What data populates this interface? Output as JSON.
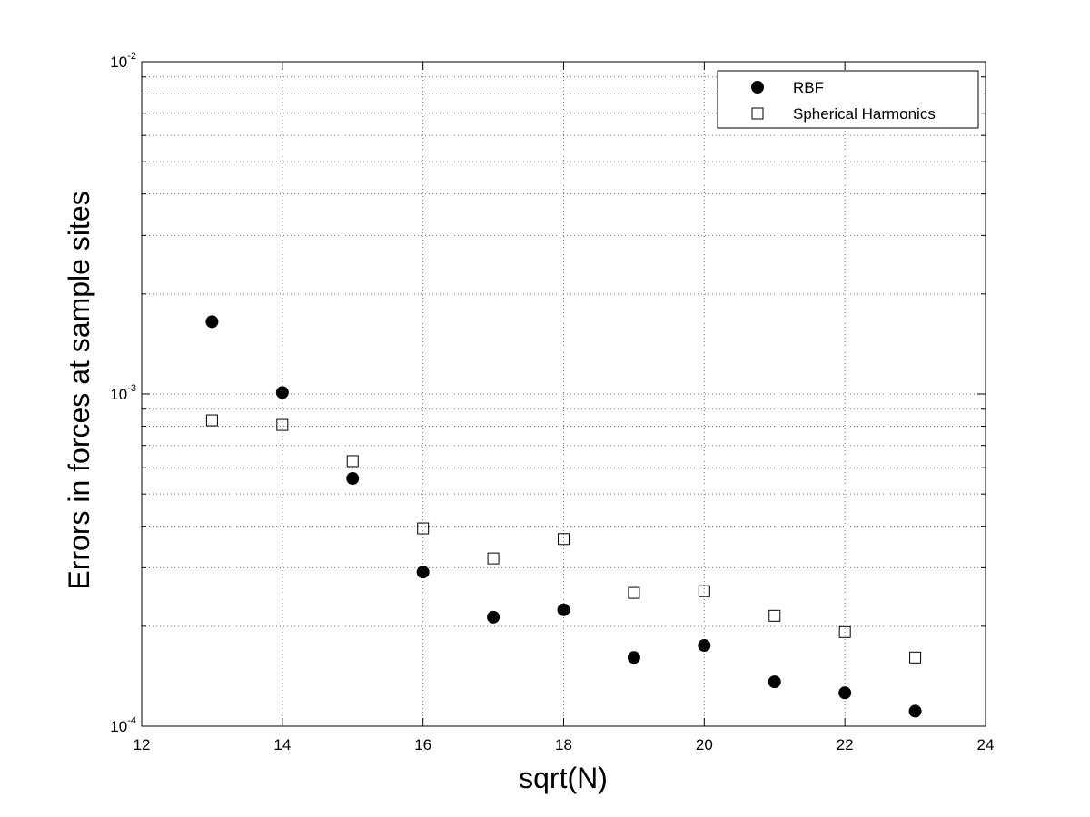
{
  "chart_data": {
    "type": "scatter",
    "xlabel": "sqrt(N)",
    "ylabel": "Errors in forces at sample sites",
    "x": [
      13,
      14,
      15,
      16,
      17,
      18,
      19,
      20,
      21,
      22,
      23
    ],
    "series": [
      {
        "name": "RBF",
        "color": "#000000",
        "marker": "filled-circle",
        "values": [
          0.00165,
          0.00101,
          0.000557,
          0.000291,
          0.000213,
          0.000224,
          0.000161,
          0.000175,
          0.000136,
          0.000126,
          0.000111
        ]
      },
      {
        "name": "Spherical Harmonics",
        "color": "#000000",
        "marker": "open-square",
        "values": [
          0.000833,
          0.000807,
          0.000628,
          0.000394,
          0.00032,
          0.000366,
          0.000252,
          0.000255,
          0.000215,
          0.000192,
          0.000161
        ]
      }
    ],
    "xlim": [
      12,
      24
    ],
    "xticks": [
      12,
      14,
      16,
      18,
      20,
      22,
      24
    ],
    "ylim": [
      0.0001,
      0.01
    ],
    "yscale": "log",
    "yticks": [
      {
        "value": 0.0001,
        "label": "10",
        "exponent": "-4"
      },
      {
        "value": 0.001,
        "label": "10",
        "exponent": "-3"
      },
      {
        "value": 0.01,
        "label": "10",
        "exponent": "-2"
      }
    ],
    "yminorticks": [
      0.0002,
      0.0003,
      0.0004,
      0.0005,
      0.0006,
      0.0007,
      0.0008,
      0.0009,
      0.002,
      0.003,
      0.004,
      0.005,
      0.006,
      0.007,
      0.008,
      0.009
    ],
    "grid": true,
    "legend": "upper right"
  }
}
